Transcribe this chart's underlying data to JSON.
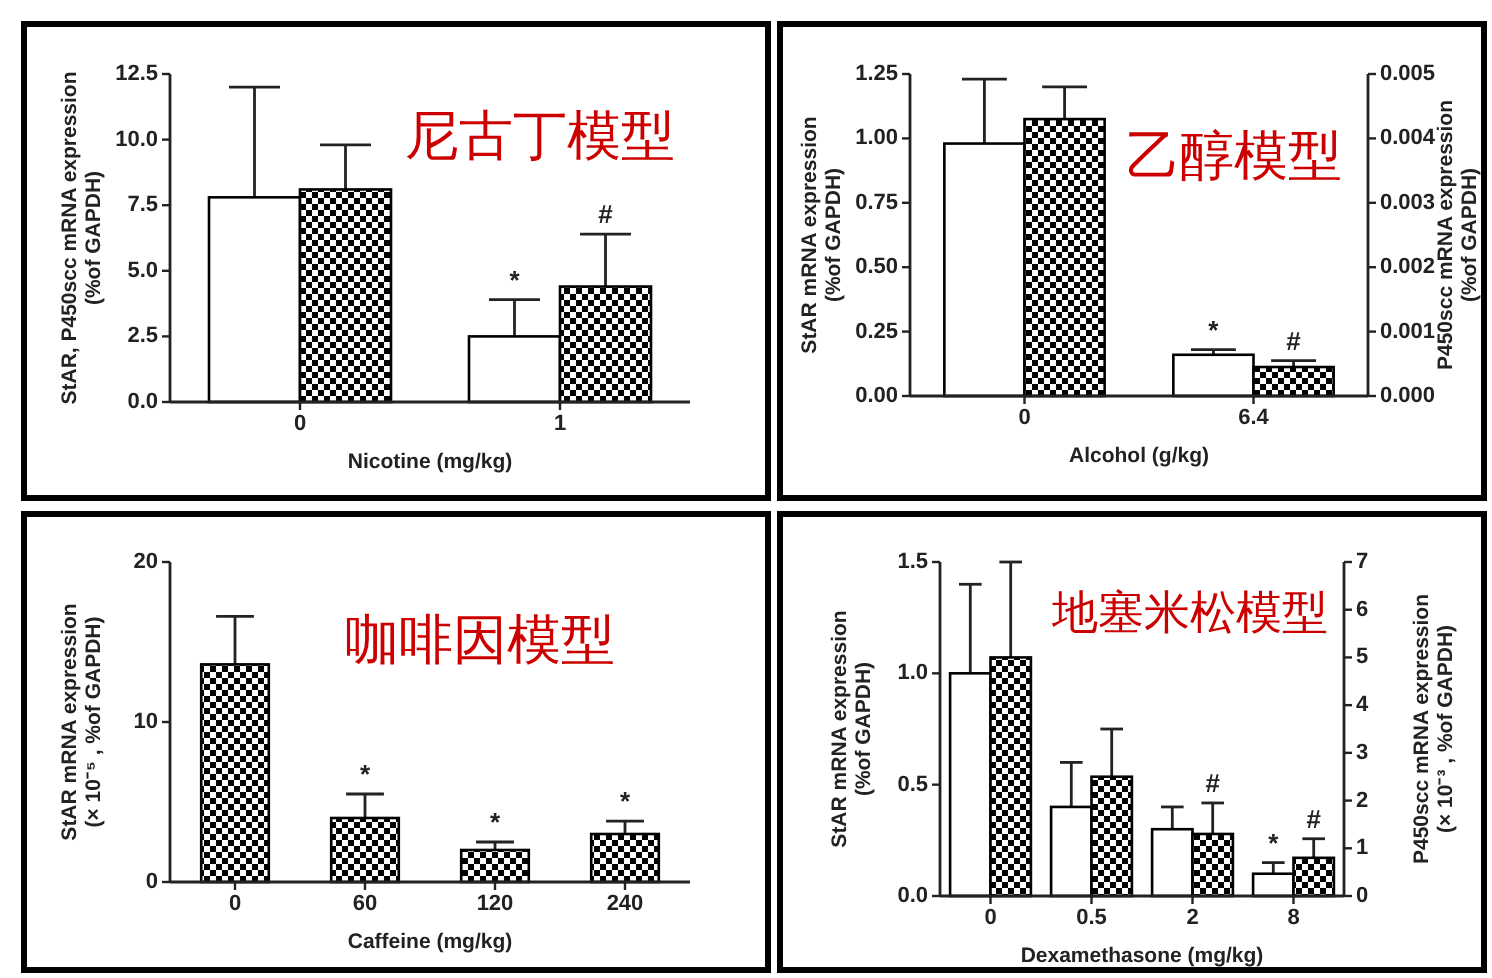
{
  "chart_data": [
    {
      "type": "bar",
      "title": "尼古丁模型",
      "xlabel": "Nicotine (mg/kg)",
      "ylabel": "StAR, P450scc mRNA expression\n(%of GAPDH)",
      "categories": [
        "0",
        "1"
      ],
      "ylim": [
        0,
        12.5
      ],
      "yticks": [
        {
          "value": 0,
          "label": "0.0"
        },
        {
          "value": 2.5,
          "label": "2.5"
        },
        {
          "value": 5,
          "label": "5.0"
        },
        {
          "value": 7.5,
          "label": "7.5"
        },
        {
          "value": 10,
          "label": "10.0"
        },
        {
          "value": 12.5,
          "label": "12.5"
        }
      ],
      "series": [
        {
          "color": "#ffffff",
          "values": [
            7.8,
            2.5
          ],
          "errors": [
            4.2,
            1.4
          ]
        },
        {
          "color": "#000000",
          "values": [
            8.1,
            4.4
          ],
          "errors": [
            1.7,
            2.0
          ]
        }
      ],
      "annotations": [
        {
          "text": "*",
          "x": "1",
          "y": 2.5
        },
        {
          "text": "#",
          "x": "1",
          "y": 4.4
        }
      ]
    },
    {
      "type": "bar",
      "title": "乙醇模型",
      "xlabel": "Alcohol (g/kg)",
      "ylabel": "StAR mRNA expression\n(%of GAPDH)",
      "y2label": "P450scc mRNA expression\n(%of GAPDH)",
      "categories": [
        "0",
        "6.4"
      ],
      "ylim": [
        0,
        1.25
      ],
      "yticks": [
        {
          "value": 0,
          "label": "0.00"
        },
        {
          "value": 0.25,
          "label": "0.25"
        },
        {
          "value": 0.5,
          "label": "0.50"
        },
        {
          "value": 0.75,
          "label": "0.75"
        },
        {
          "value": 1,
          "label": "1.00"
        },
        {
          "value": 1.25,
          "label": "1.25"
        }
      ],
      "y2lim": [
        0,
        0.005
      ],
      "y2ticks": [
        {
          "value": 0,
          "label": "0.000"
        },
        {
          "value": 0.001,
          "label": "0.001"
        },
        {
          "value": 0.002,
          "label": "0.002"
        },
        {
          "value": 0.003,
          "label": "0.003"
        },
        {
          "value": 0.004,
          "label": "0.004"
        },
        {
          "value": 0.005,
          "label": "0.005"
        }
      ],
      "series": [
        {
          "color": "#ffffff",
          "values": [
            0.98,
            0.16
          ],
          "errors": [
            0.25,
            0.02
          ]
        },
        {
          "color": "#000000",
          "axis": "y2",
          "values": [
            0.0043,
            0.00045
          ],
          "errors": [
            0.0005,
            0.0001
          ]
        }
      ],
      "annotations": [
        {
          "text": "*",
          "x": "6.4",
          "y": 0.16
        },
        {
          "text": "#",
          "x": "6.4",
          "y": 0.00045
        }
      ]
    },
    {
      "type": "bar",
      "title": "咖啡因模型",
      "xlabel": "Caffeine (mg/kg)",
      "ylabel": "StAR mRNA expression\n(× 10⁻⁵ , %of GAPDH)",
      "categories": [
        "0",
        "60",
        "120",
        "240"
      ],
      "ylim": [
        0,
        20
      ],
      "yticks": [
        0,
        10,
        20
      ],
      "color": "#000000",
      "values": [
        13.6,
        4.0,
        2.0,
        3.0
      ],
      "errors": [
        3.0,
        1.5,
        0.5,
        0.8
      ],
      "annotations": [
        {
          "text": "*",
          "x": "60",
          "y": 4.0
        },
        {
          "text": "*",
          "x": "120",
          "y": 2.0
        },
        {
          "text": "*",
          "x": "240",
          "y": 3.0
        }
      ]
    },
    {
      "type": "bar",
      "title": "地塞米松模型",
      "xlabel": "Dexamethasone (mg/kg)",
      "ylabel": "StAR mRNA expression\n(%of GAPDH)",
      "y2label": "P450scc mRNA expression\n(× 10⁻³ , %of GAPDH)",
      "categories": [
        "0",
        "0.5",
        "2",
        "8"
      ],
      "ylim": [
        0,
        1.5
      ],
      "yticks": [
        {
          "value": 0,
          "label": "0.0"
        },
        {
          "value": 0.5,
          "label": "0.5"
        },
        {
          "value": 1,
          "label": "1.0"
        },
        {
          "value": 1.5,
          "label": "1.5"
        }
      ],
      "y2lim": [
        0,
        7
      ],
      "y2ticks": [
        0,
        1,
        2,
        3,
        4,
        5,
        6,
        7
      ],
      "series": [
        {
          "color": "#ffffff",
          "values": [
            1.0,
            0.4,
            0.3,
            0.1
          ],
          "errors": [
            0.4,
            0.2,
            0.1,
            0.05
          ]
        },
        {
          "color": "#000000",
          "axis": "y2",
          "values": [
            5.0,
            2.5,
            1.3,
            0.8
          ],
          "errors": [
            2.0,
            1.0,
            0.65,
            0.4
          ]
        }
      ],
      "annotations": [
        {
          "text": "#",
          "x": "2",
          "y": 0.28
        },
        {
          "text": "*",
          "x": "8",
          "y": 0.1
        },
        {
          "text": "#",
          "x": "8",
          "y": 0.17
        }
      ]
    }
  ]
}
